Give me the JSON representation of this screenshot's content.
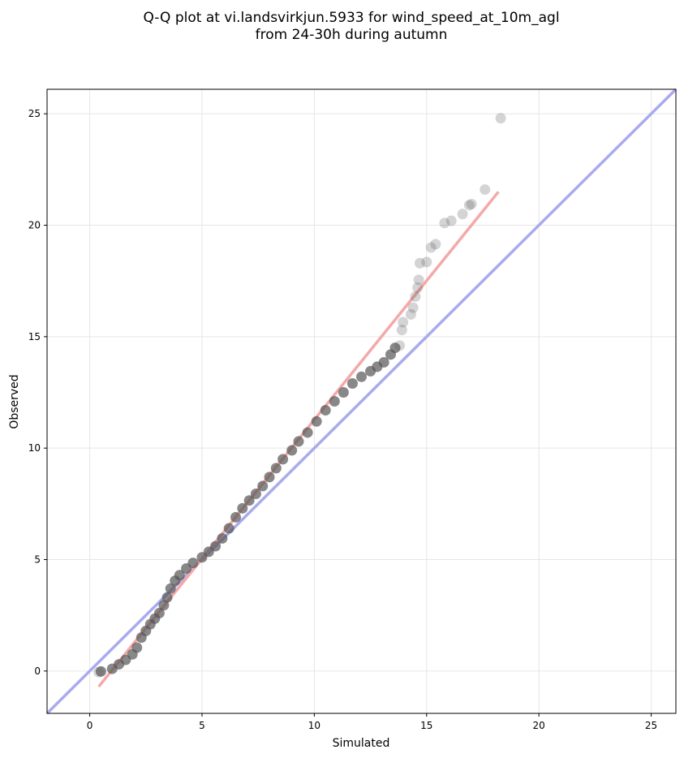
{
  "chart_data": {
    "type": "scatter",
    "title_lines": [
      "Q-Q plot at vi.landsvirkjun.5933 for wind_speed_at_10m_agl",
      "from 24-30h during autumn"
    ],
    "xlabel": "Simulated",
    "ylabel": "Observed",
    "xlim": [
      -1.9,
      26.1
    ],
    "ylim": [
      -1.9,
      26.1
    ],
    "xticks": [
      "0",
      "5",
      "10",
      "15",
      "20",
      "25"
    ],
    "yticks": [
      "0",
      "5",
      "10",
      "15",
      "20",
      "25"
    ],
    "grid": true,
    "colors": {
      "points": "#555555",
      "identity_line": "#aaaaee",
      "fit_line": "#f4a9a9"
    },
    "qq_points_dense": [
      [
        0.5,
        -0.02
      ],
      [
        1.0,
        0.1
      ],
      [
        1.3,
        0.3
      ],
      [
        1.6,
        0.5
      ],
      [
        1.9,
        0.75
      ],
      [
        2.1,
        1.05
      ],
      [
        2.3,
        1.5
      ],
      [
        2.5,
        1.8
      ],
      [
        2.7,
        2.1
      ],
      [
        2.9,
        2.35
      ],
      [
        3.1,
        2.6
      ],
      [
        3.3,
        2.95
      ],
      [
        3.45,
        3.3
      ],
      [
        3.6,
        3.7
      ],
      [
        3.8,
        4.05
      ],
      [
        4.0,
        4.3
      ],
      [
        4.3,
        4.6
      ],
      [
        4.6,
        4.85
      ],
      [
        5.0,
        5.1
      ],
      [
        5.3,
        5.35
      ],
      [
        5.6,
        5.6
      ],
      [
        5.9,
        5.95
      ],
      [
        6.2,
        6.4
      ],
      [
        6.5,
        6.9
      ],
      [
        6.8,
        7.3
      ],
      [
        7.1,
        7.65
      ],
      [
        7.4,
        7.95
      ],
      [
        7.7,
        8.3
      ],
      [
        8.0,
        8.7
      ],
      [
        8.3,
        9.1
      ],
      [
        8.6,
        9.5
      ],
      [
        9.0,
        9.9
      ],
      [
        9.3,
        10.3
      ],
      [
        9.7,
        10.7
      ],
      [
        10.1,
        11.2
      ],
      [
        10.5,
        11.7
      ],
      [
        10.9,
        12.1
      ],
      [
        11.3,
        12.5
      ],
      [
        11.7,
        12.9
      ],
      [
        12.1,
        13.2
      ],
      [
        12.5,
        13.45
      ],
      [
        12.8,
        13.65
      ],
      [
        13.1,
        13.85
      ],
      [
        13.4,
        14.2
      ],
      [
        13.6,
        14.5
      ]
    ],
    "qq_points_tail": [
      [
        0.4,
        -0.05
      ],
      [
        13.8,
        14.6
      ],
      [
        13.9,
        15.3
      ],
      [
        13.95,
        15.65
      ],
      [
        14.3,
        16.0
      ],
      [
        14.4,
        16.3
      ],
      [
        14.5,
        16.8
      ],
      [
        14.6,
        17.2
      ],
      [
        14.65,
        17.55
      ],
      [
        14.7,
        18.3
      ],
      [
        15.0,
        18.35
      ],
      [
        15.2,
        19.0
      ],
      [
        15.4,
        19.15
      ],
      [
        15.8,
        20.1
      ],
      [
        16.1,
        20.2
      ],
      [
        16.6,
        20.5
      ],
      [
        16.9,
        20.9
      ],
      [
        17.0,
        20.95
      ],
      [
        17.6,
        21.6
      ],
      [
        18.3,
        24.8
      ]
    ],
    "identity_line": [
      [
        -1.9,
        -1.9
      ],
      [
        26.1,
        26.1
      ]
    ],
    "fit_line": [
      [
        0.4,
        -0.7
      ],
      [
        18.2,
        21.5
      ]
    ]
  }
}
